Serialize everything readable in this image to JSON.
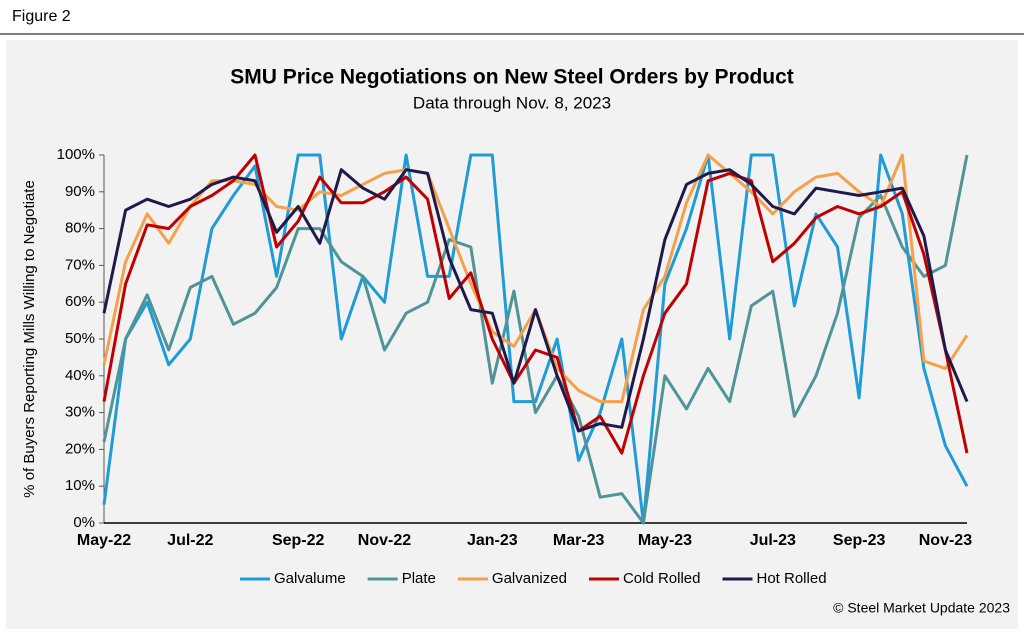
{
  "figure_label": "Figure 2",
  "chart_data": {
    "type": "line",
    "title": "SMU Price Negotiations on New Steel Orders by Product",
    "subtitle": "Data through Nov. 8, 2023",
    "y_label": "% of Buyers Reporting Mills Willing to Negotiate",
    "source": "© Steel Market Update 2023",
    "categories": [
      "May-22",
      null,
      null,
      null,
      "Jul-22",
      null,
      null,
      null,
      null,
      "Sep-22",
      null,
      null,
      null,
      "Nov-22",
      null,
      null,
      null,
      null,
      "Jan-23",
      null,
      null,
      null,
      "Mar-23",
      null,
      null,
      null,
      "May-23",
      null,
      null,
      null,
      null,
      "Jul-23",
      null,
      null,
      null,
      "Sep-23",
      null,
      null,
      null,
      "Nov-23",
      null
    ],
    "ylim": [
      0,
      100
    ],
    "yticks": [
      {
        "value": 0,
        "label": "0%"
      },
      {
        "value": 10,
        "label": "10%"
      },
      {
        "value": 20,
        "label": "20%"
      },
      {
        "value": 30,
        "label": "30%"
      },
      {
        "value": 40,
        "label": "40%"
      },
      {
        "value": 50,
        "label": "50%"
      },
      {
        "value": 60,
        "label": "60%"
      },
      {
        "value": 70,
        "label": "70%"
      },
      {
        "value": 80,
        "label": "80%"
      },
      {
        "value": 90,
        "label": "90%"
      },
      {
        "value": 100,
        "label": "100%"
      }
    ],
    "grid": false,
    "legend": "bottom",
    "series": [
      {
        "name": "Galvalume",
        "color": "#1f9bd7",
        "values": [
          5,
          50,
          60,
          43,
          50,
          80,
          89,
          97,
          67,
          100,
          100,
          50,
          67,
          60,
          100,
          67,
          67,
          100,
          100,
          33,
          33,
          50,
          17,
          30,
          50,
          0,
          65,
          80,
          100,
          50,
          100,
          100,
          59,
          84,
          75,
          34,
          100,
          84,
          42,
          21,
          10
        ]
      },
      {
        "name": "Plate",
        "color": "#4f9497",
        "values": [
          22,
          50,
          62,
          47,
          64,
          67,
          54,
          57,
          64,
          80,
          80,
          71,
          67,
          47,
          57,
          60,
          77,
          75,
          38,
          63,
          30,
          40,
          29,
          7,
          8,
          0,
          40,
          31,
          42,
          33,
          59,
          63,
          29,
          40,
          57,
          83,
          89,
          75,
          67,
          70,
          100
        ]
      },
      {
        "name": "Galvanized",
        "color": "#f5a04a",
        "values": [
          43,
          71,
          84,
          76,
          86,
          93,
          93,
          92,
          86,
          85,
          90,
          89,
          92,
          95,
          96,
          95,
          80,
          65,
          52,
          48,
          58,
          42,
          36,
          33,
          33,
          58,
          67,
          87,
          100,
          95,
          90,
          84,
          90,
          94,
          95,
          90,
          86,
          100,
          44,
          42,
          51
        ]
      },
      {
        "name": "Cold Rolled",
        "color": "#c00000",
        "values": [
          33,
          65,
          81,
          80,
          86,
          89,
          93,
          100,
          75,
          82,
          94,
          87,
          87,
          90,
          94,
          88,
          61,
          68,
          50,
          38,
          47,
          45,
          25,
          29,
          19,
          40,
          57,
          65,
          93,
          95,
          93,
          71,
          76,
          83,
          86,
          84,
          86,
          90,
          73,
          47,
          19
        ]
      },
      {
        "name": "Hot Rolled",
        "color": "#1f1a4a",
        "values": [
          57,
          85,
          88,
          86,
          88,
          92,
          94,
          93,
          79,
          86,
          76,
          96,
          91,
          88,
          96,
          95,
          72,
          58,
          57,
          38,
          58,
          40,
          25,
          27,
          26,
          50,
          77,
          92,
          95,
          96,
          92,
          86,
          84,
          91,
          90,
          89,
          90,
          91,
          78,
          47,
          33
        ]
      }
    ]
  }
}
